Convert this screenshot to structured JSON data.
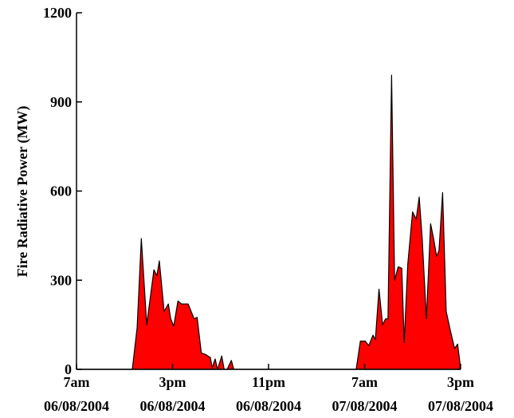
{
  "chart_data": {
    "type": "area",
    "ylabel": "Fire Radiative Power (MW)",
    "color": "#ff0000",
    "xlim": [
      0,
      32
    ],
    "ylim": [
      0,
      1200
    ],
    "yticks": [
      0,
      300,
      600,
      900,
      1200
    ],
    "xticks": [
      {
        "value": 0,
        "label": "7am\n06/08/2004"
      },
      {
        "value": 8,
        "label": "3pm\n06/08/2004"
      },
      {
        "value": 16,
        "label": "11pm\n06/08/2004"
      },
      {
        "value": 24,
        "label": "7am\n07/08/2004"
      },
      {
        "value": 32,
        "label": "3pm\n07/08/2004"
      }
    ],
    "x": [
      0,
      4.65,
      5.05,
      5.4,
      5.85,
      6.45,
      6.7,
      6.9,
      7.3,
      7.65,
      7.85,
      8.1,
      8.45,
      8.75,
      9.3,
      9.8,
      10.05,
      10.4,
      10.75,
      10.95,
      11.15,
      11.3,
      11.55,
      11.75,
      12.1,
      12.3,
      12.55,
      12.9,
      13.1,
      23.3,
      23.65,
      24.05,
      24.35,
      24.7,
      24.9,
      25.2,
      25.5,
      25.75,
      25.95,
      26.25,
      26.5,
      26.8,
      27.1,
      27.3,
      27.6,
      28.0,
      28.3,
      28.55,
      28.8,
      29.15,
      29.5,
      29.75,
      30.0,
      30.2,
      30.5,
      30.8,
      31.15,
      31.5,
      31.75,
      31.95
    ],
    "values": [
      0,
      0,
      140,
      440,
      150,
      335,
      315,
      365,
      195,
      220,
      170,
      145,
      230,
      220,
      220,
      170,
      175,
      55,
      50,
      45,
      40,
      5,
      35,
      0,
      45,
      0,
      0,
      30,
      0,
      0,
      95,
      95,
      80,
      115,
      100,
      270,
      150,
      170,
      170,
      990,
      300,
      345,
      340,
      90,
      355,
      530,
      505,
      580,
      440,
      170,
      490,
      440,
      380,
      400,
      595,
      195,
      130,
      70,
      85,
      20
    ]
  }
}
